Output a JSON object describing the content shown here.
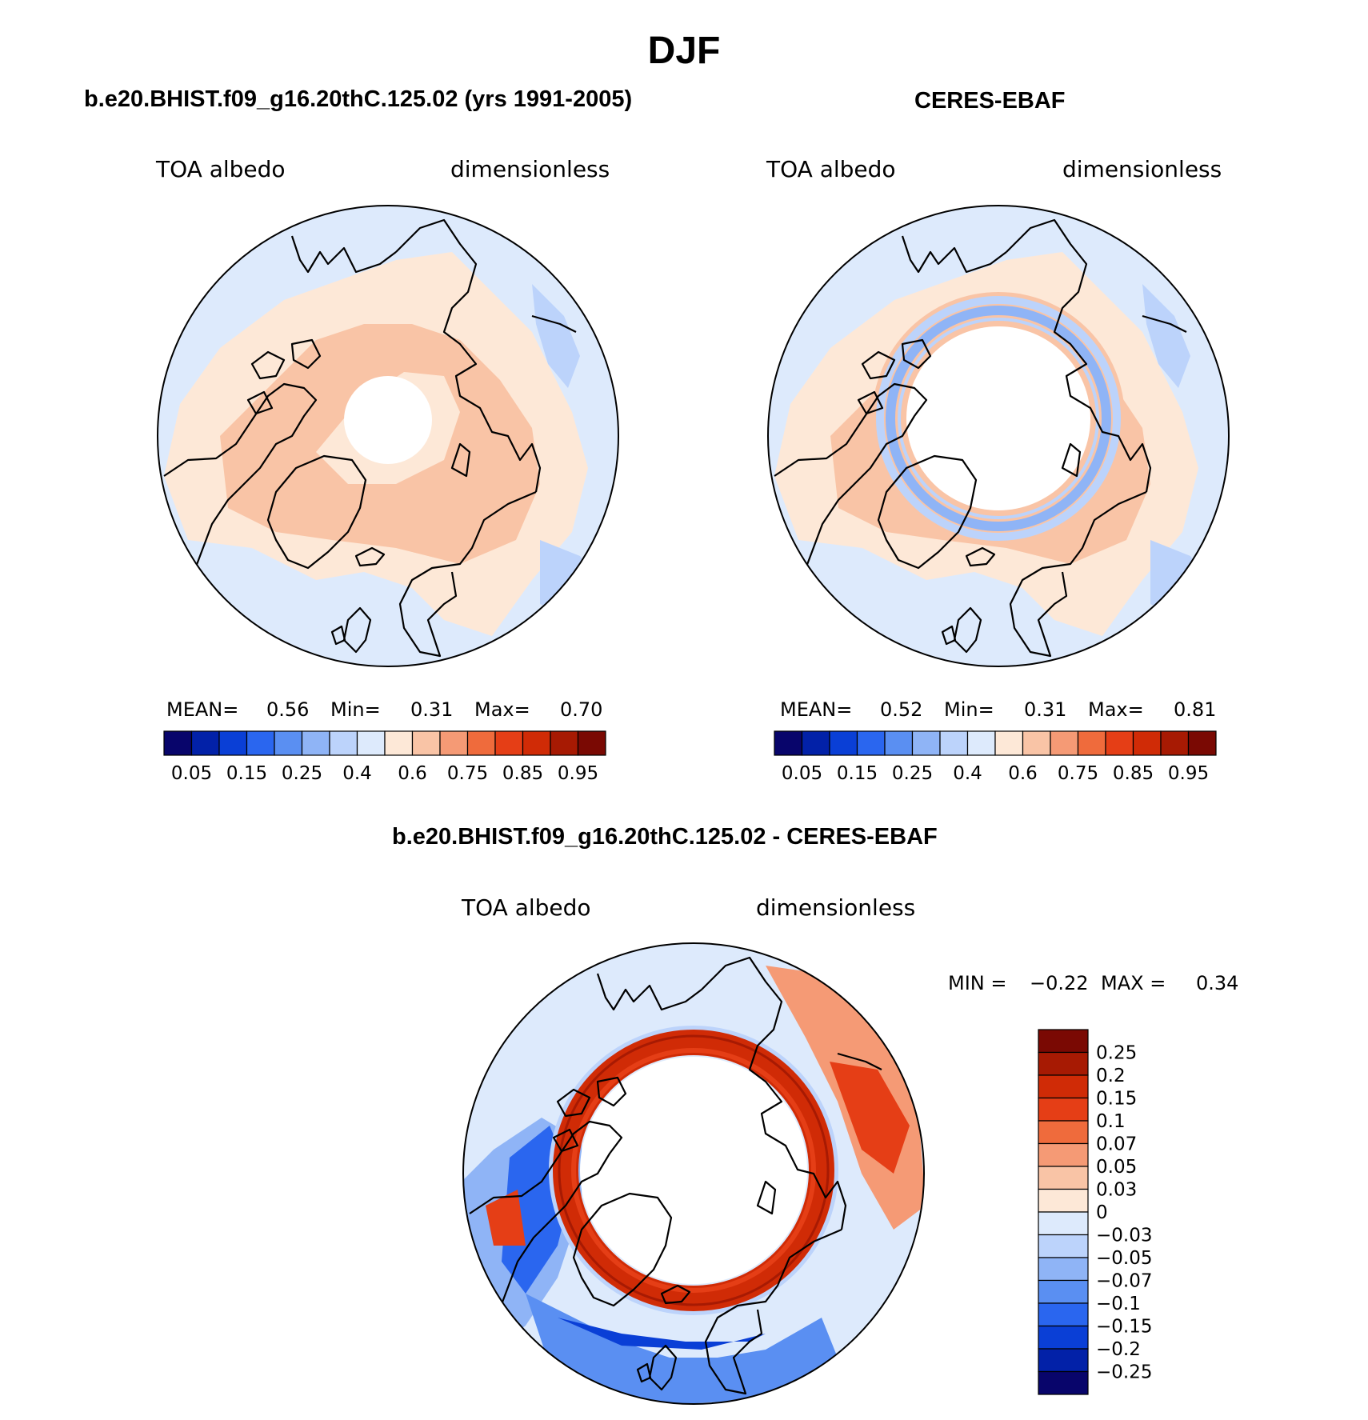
{
  "page_title": "DJF",
  "colors": {
    "div": [
      "#08056b",
      "#0221a8",
      "#0a3fd6",
      "#2a66ef",
      "#5a8ff2",
      "#8fb4f6",
      "#bcd3fb",
      "#ddeafc",
      "#fde8d7",
      "#f9c4a6",
      "#f59a75",
      "#ef6b3c",
      "#e53e16",
      "#d02b06",
      "#a71a03",
      "#7a0903"
    ],
    "land": "#000000"
  },
  "chart_data": [
    {
      "id": "model",
      "type": "heatmap",
      "title": "b.e20.BHIST.f09_g16.20thC.125.02 (yrs 1991-2005)",
      "left_label": "TOA albedo",
      "right_label": "dimensionless",
      "stats": {
        "mean_label": "MEAN=",
        "mean": "0.56",
        "min_label": "Min=",
        "min": "0.31",
        "max_label": "Max=",
        "max": "0.70"
      },
      "colorbar_ticks": [
        "0.05",
        "0.15",
        "0.25",
        "0.4",
        "0.6",
        "0.75",
        "0.85",
        "0.95"
      ],
      "levels": [
        0.05,
        0.1,
        0.15,
        0.2,
        0.25,
        0.3,
        0.4,
        0.5,
        0.6,
        0.7,
        0.75,
        0.8,
        0.85,
        0.9,
        0.95
      ]
    },
    {
      "id": "obs",
      "type": "heatmap",
      "title": "CERES-EBAF",
      "left_label": "TOA albedo",
      "right_label": "dimensionless",
      "stats": {
        "mean_label": "MEAN=",
        "mean": "0.52",
        "min_label": "Min=",
        "min": "0.31",
        "max_label": "Max=",
        "max": "0.81"
      },
      "colorbar_ticks": [
        "0.05",
        "0.15",
        "0.25",
        "0.4",
        "0.6",
        "0.75",
        "0.85",
        "0.95"
      ],
      "levels": [
        0.05,
        0.1,
        0.15,
        0.2,
        0.25,
        0.3,
        0.4,
        0.5,
        0.6,
        0.7,
        0.75,
        0.8,
        0.85,
        0.9,
        0.95
      ]
    },
    {
      "id": "diff",
      "type": "heatmap",
      "title": "b.e20.BHIST.f09_g16.20thC.125.02 - CERES-EBAF",
      "left_label": "TOA albedo",
      "right_label": "dimensionless",
      "stats": {
        "min_label": "MIN =",
        "min": "−0.22",
        "max_label": "MAX =",
        "max": "0.34"
      },
      "colorbar_ticks": [
        "0.25",
        "0.2",
        "0.15",
        "0.1",
        "0.07",
        "0.05",
        "0.03",
        "0",
        "−0.03",
        "−0.05",
        "−0.07",
        "−0.1",
        "−0.15",
        "−0.2",
        "−0.25"
      ]
    }
  ]
}
